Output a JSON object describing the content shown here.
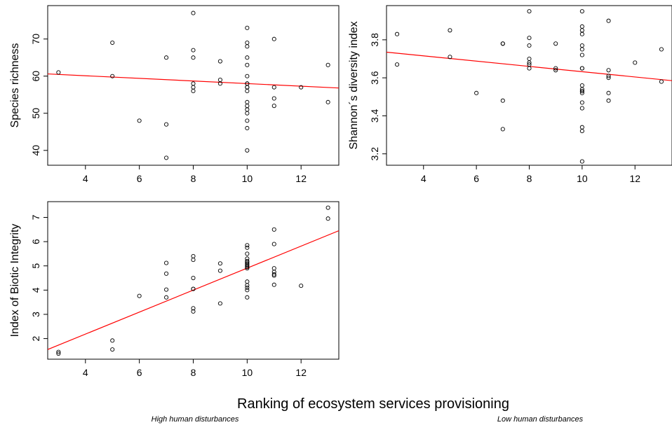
{
  "figure": {
    "xlabel": "Ranking of ecosystem services provisioning",
    "left_note": "High human disturbances",
    "right_note": "Low human disturbances"
  },
  "chart_data": [
    {
      "type": "scatter",
      "ylabel": "Species richness",
      "xlim": [
        2.6,
        13.4
      ],
      "ylim": [
        36,
        79
      ],
      "xticks": [
        4,
        6,
        8,
        10,
        12
      ],
      "yticks": [
        40,
        50,
        60,
        70
      ],
      "grid": false,
      "trend_color": "#ff0000",
      "trend": {
        "x": [
          2.6,
          13.4
        ],
        "y": [
          60.6,
          56.8
        ]
      },
      "x": [
        3,
        5,
        5,
        6,
        7,
        7,
        7,
        8,
        8,
        8,
        8,
        8,
        8,
        9,
        9,
        9,
        10,
        10,
        10,
        10,
        10,
        10,
        10,
        10,
        10,
        10,
        10,
        10,
        10,
        10,
        10,
        10,
        10,
        10,
        11,
        11,
        11,
        11,
        12,
        13,
        13
      ],
      "y": [
        61,
        69,
        60,
        48,
        65,
        47,
        38,
        77,
        67,
        65,
        58,
        57,
        56,
        64,
        59,
        58,
        73,
        69,
        68,
        65,
        63,
        60,
        58,
        57,
        56,
        53,
        52,
        51,
        50,
        48,
        46,
        40,
        57,
        58,
        70,
        57,
        54,
        52,
        57,
        63,
        53
      ]
    },
    {
      "type": "scatter",
      "ylabel": "Shannon´s diversity index",
      "xlim": [
        2.6,
        13.4
      ],
      "ylim": [
        3.14,
        3.98
      ],
      "xticks": [
        4,
        6,
        8,
        10,
        12
      ],
      "yticks": [
        3.2,
        3.4,
        3.6,
        3.8
      ],
      "grid": false,
      "trend_color": "#ff0000",
      "trend": {
        "x": [
          2.6,
          13.4
        ],
        "y": [
          3.735,
          3.585
        ]
      },
      "x": [
        3,
        3,
        5,
        5,
        6,
        7,
        7,
        7,
        7,
        8,
        8,
        8,
        8,
        8,
        8,
        8,
        9,
        9,
        9,
        10,
        10,
        10,
        10,
        10,
        10,
        10,
        10,
        10,
        10,
        10,
        10,
        10,
        10,
        10,
        10,
        10,
        10,
        10,
        11,
        11,
        11,
        11,
        11,
        11,
        12,
        13,
        13
      ],
      "y": [
        3.83,
        3.67,
        3.85,
        3.71,
        3.52,
        3.78,
        3.78,
        3.48,
        3.33,
        3.95,
        3.81,
        3.77,
        3.7,
        3.68,
        3.67,
        3.65,
        3.78,
        3.65,
        3.64,
        3.95,
        3.87,
        3.85,
        3.83,
        3.77,
        3.75,
        3.72,
        3.65,
        3.56,
        3.54,
        3.53,
        3.52,
        3.47,
        3.44,
        3.34,
        3.32,
        3.16,
        3.53,
        3.65,
        3.9,
        3.64,
        3.61,
        3.6,
        3.52,
        3.48,
        3.68,
        3.75,
        3.58
      ]
    },
    {
      "type": "scatter",
      "ylabel": "Index of Biotic Integrity",
      "xlim": [
        2.6,
        13.4
      ],
      "ylim": [
        1.15,
        7.65
      ],
      "xticks": [
        4,
        6,
        8,
        10,
        12
      ],
      "yticks": [
        2,
        3,
        4,
        5,
        6,
        7
      ],
      "grid": false,
      "trend_color": "#ff0000",
      "trend": {
        "x": [
          2.6,
          13.4
        ],
        "y": [
          1.55,
          6.45
        ]
      },
      "x": [
        3,
        3,
        5,
        5,
        6,
        7,
        7,
        7,
        7,
        8,
        8,
        8,
        8,
        8,
        8,
        8,
        9,
        9,
        9,
        10,
        10,
        10,
        10,
        10,
        10,
        10,
        10,
        10,
        10,
        10,
        10,
        10,
        10,
        10,
        10,
        11,
        11,
        11,
        11,
        11,
        11,
        11,
        12,
        13,
        13
      ],
      "y": [
        1.45,
        1.38,
        1.92,
        1.55,
        3.76,
        5.12,
        4.68,
        4.02,
        3.7,
        5.4,
        5.25,
        4.5,
        4.05,
        3.25,
        3.12,
        4.05,
        5.1,
        4.8,
        3.45,
        5.85,
        5.75,
        5.5,
        5.3,
        5.2,
        5.15,
        5.1,
        5.0,
        4.95,
        4.9,
        4.35,
        4.2,
        4.1,
        4.0,
        3.7,
        5.05,
        6.5,
        5.9,
        4.9,
        4.75,
        4.65,
        4.6,
        4.22,
        4.18,
        7.4,
        6.95
      ]
    }
  ]
}
